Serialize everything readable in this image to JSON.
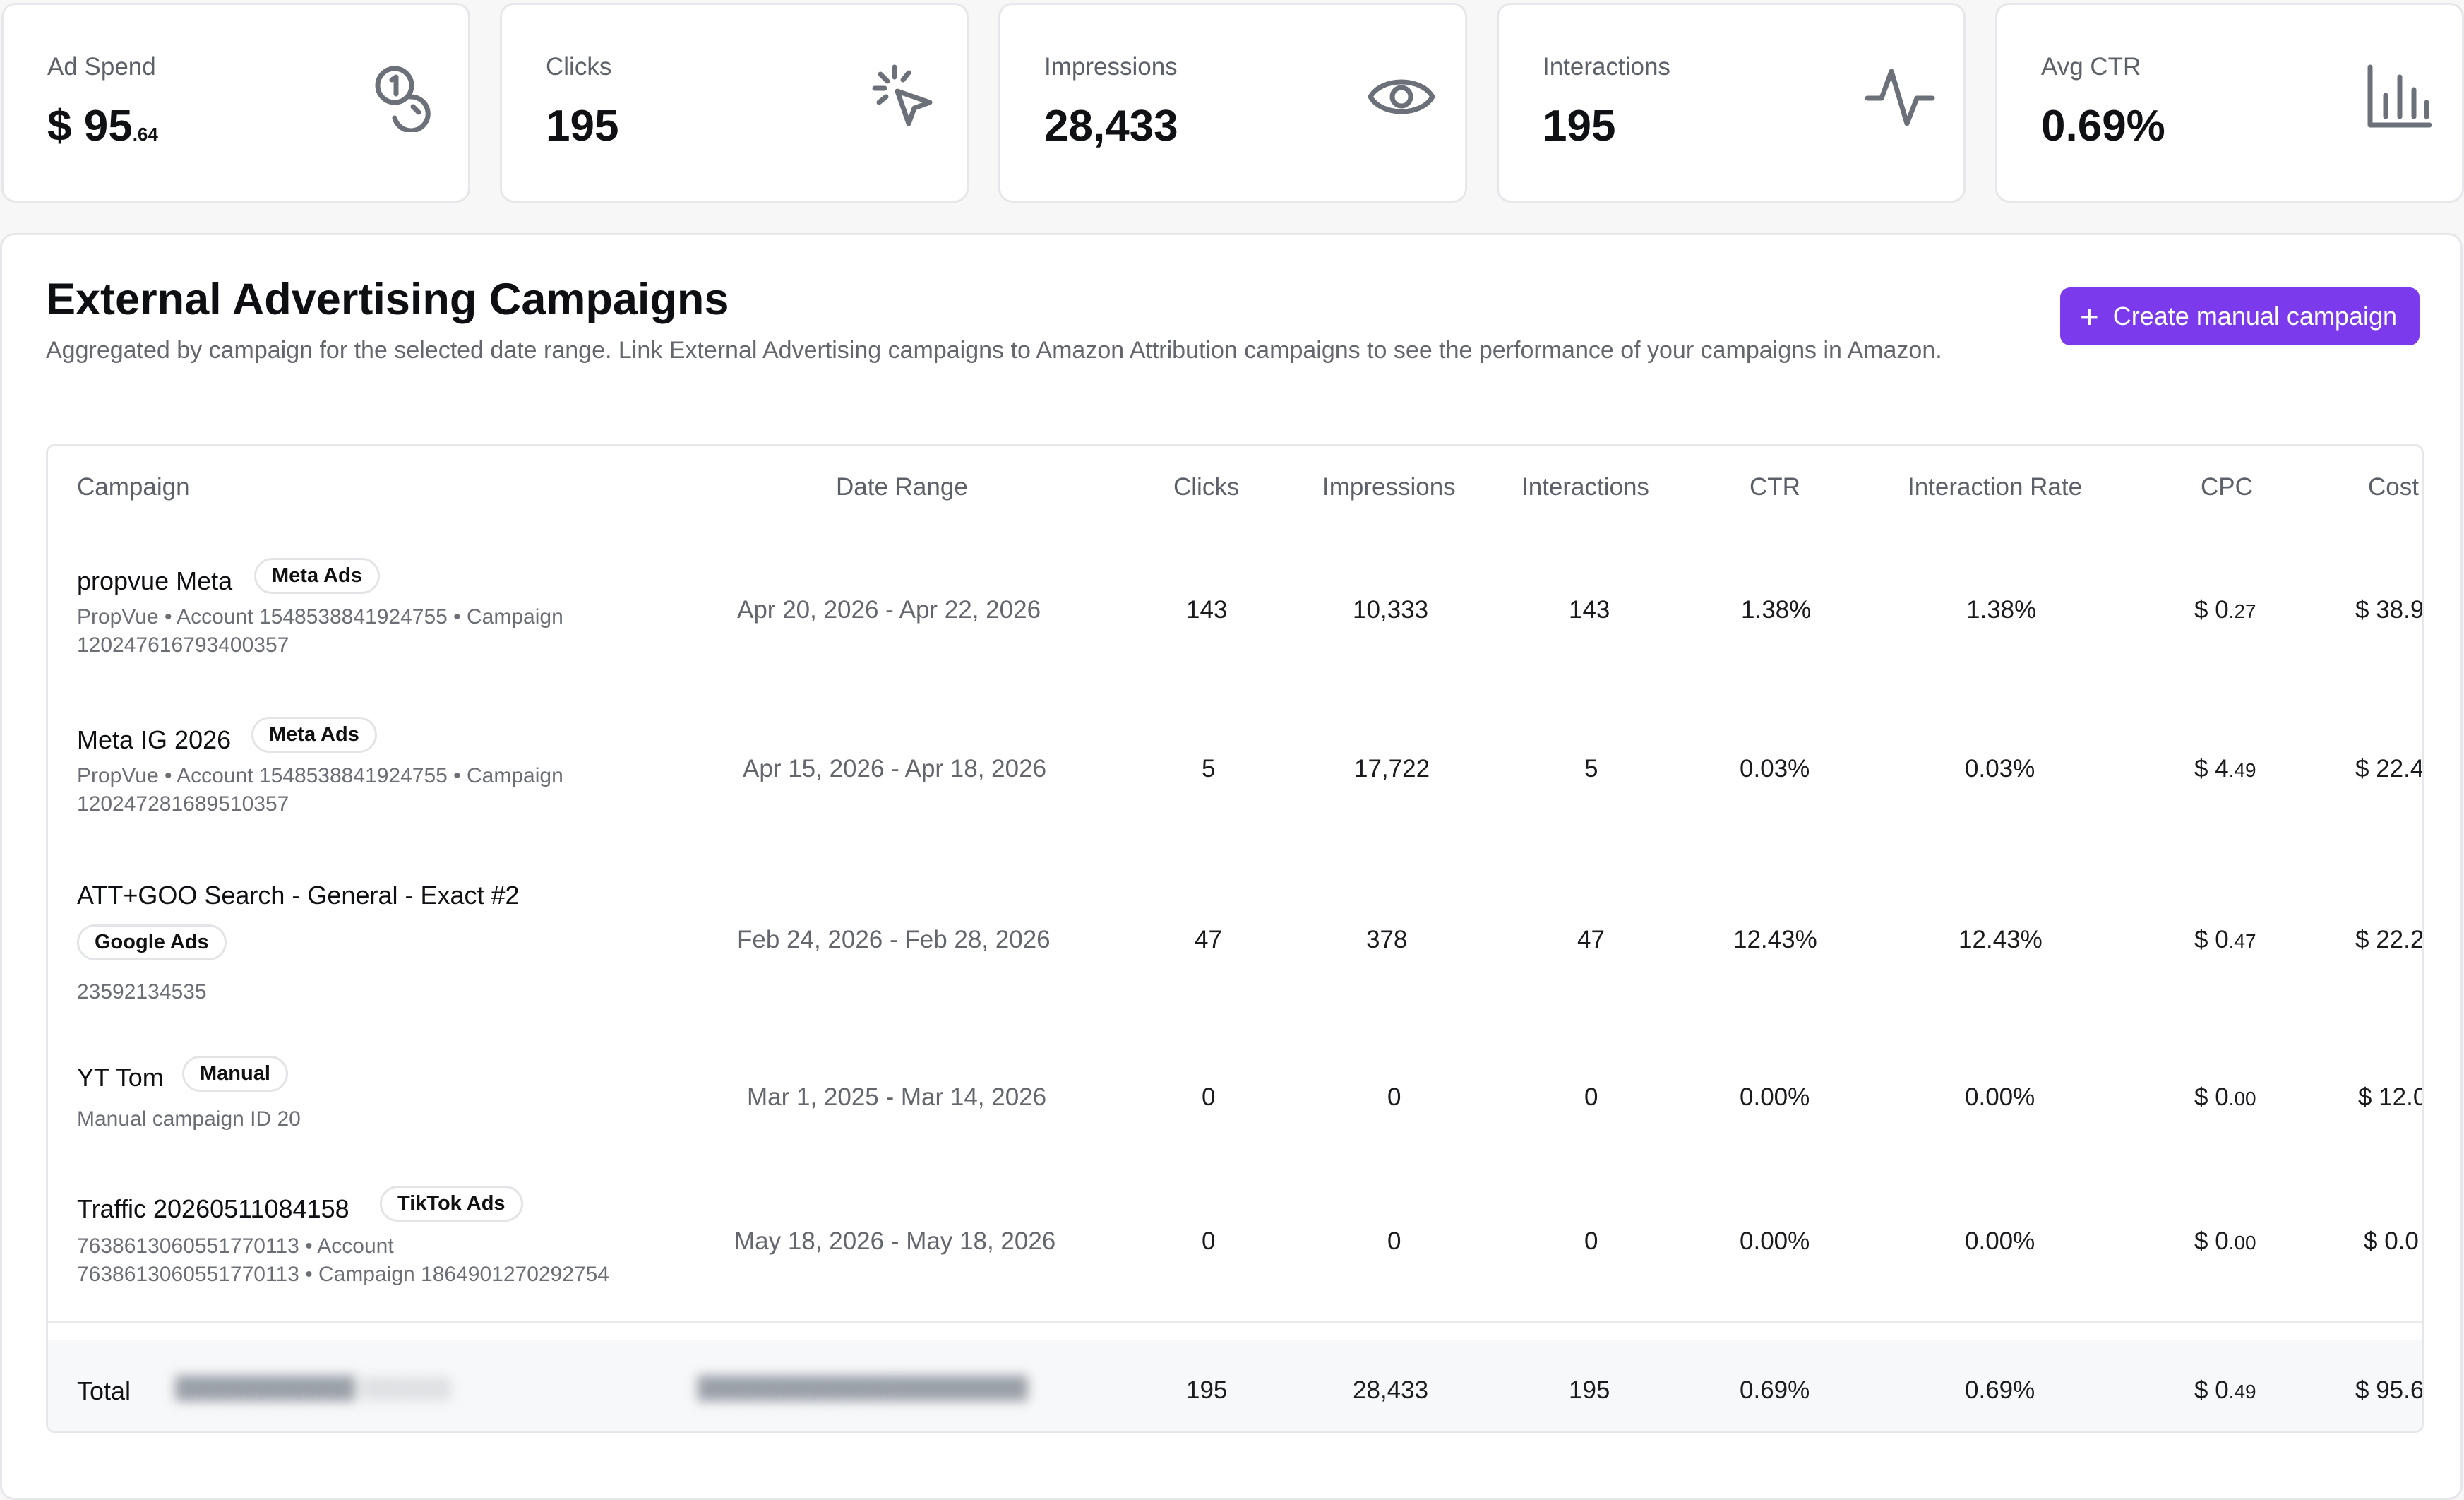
{
  "kpis": [
    {
      "label": "Ad Spend",
      "currency": "$",
      "whole": "95",
      "cents": ".64",
      "icon": "coins-icon"
    },
    {
      "label": "Clicks",
      "value": "195",
      "icon": "pointer-click-icon"
    },
    {
      "label": "Impressions",
      "value": "28,433",
      "icon": "eye-icon"
    },
    {
      "label": "Interactions",
      "value": "195",
      "icon": "activity-icon"
    },
    {
      "label": "Avg CTR",
      "value": "0.69%",
      "icon": "bar-chart-icon"
    }
  ],
  "panel": {
    "title": "External Advertising Campaigns",
    "description": "Aggregated by campaign for the selected date range. Link External Advertising campaigns to Amazon Attribution campaigns to see the performance of your campaigns in Amazon.",
    "create_button": "Create manual campaign"
  },
  "table": {
    "headers": {
      "campaign": "Campaign",
      "date_range": "Date Range",
      "clicks": "Clicks",
      "impressions": "Impressions",
      "interactions": "Interactions",
      "ctr": "CTR",
      "interaction_rate": "Interaction Rate",
      "cpc": "CPC",
      "cost": "Cost"
    },
    "rows": [
      {
        "name": "propvue Meta",
        "badge": "Meta Ads",
        "meta_line1": "PropVue • Account 1548538841924755 • Campaign",
        "meta_line2": "120247616793400357",
        "date_range": "Apr 20, 2026 - Apr 22, 2026",
        "clicks": "143",
        "impressions": "10,333",
        "interactions": "143",
        "ctr": "1.38%",
        "interaction_rate": "1.38%",
        "cpc_whole": "0",
        "cpc_cents": ".27",
        "cost": "38.9"
      },
      {
        "name": "Meta IG 2026",
        "badge": "Meta Ads",
        "meta_line1": "PropVue • Account 1548538841924755 • Campaign",
        "meta_line2": "120247281689510357",
        "date_range": "Apr 15, 2026 - Apr 18, 2026",
        "clicks": "5",
        "impressions": "17,722",
        "interactions": "5",
        "ctr": "0.03%",
        "interaction_rate": "0.03%",
        "cpc_whole": "4",
        "cpc_cents": ".49",
        "cost": "22.4"
      },
      {
        "name": "ATT+GOO Search - General - Exact #2",
        "badge": "Google Ads",
        "meta_line1": "23592134535",
        "meta_line2": "",
        "date_range": "Feb 24, 2026 - Feb 28, 2026",
        "clicks": "47",
        "impressions": "378",
        "interactions": "47",
        "ctr": "12.43%",
        "interaction_rate": "12.43%",
        "cpc_whole": "0",
        "cpc_cents": ".47",
        "cost": "22.2"
      },
      {
        "name": "YT Tom",
        "badge": "Manual",
        "meta_line1": "Manual campaign ID 20",
        "meta_line2": "",
        "date_range": "Mar 1, 2025 - Mar 14, 2026",
        "clicks": "0",
        "impressions": "0",
        "interactions": "0",
        "ctr": "0.00%",
        "interaction_rate": "0.00%",
        "cpc_whole": "0",
        "cpc_cents": ".00",
        "cost": "12.0"
      },
      {
        "name": "Traffic 20260511084158",
        "badge": "TikTok Ads",
        "meta_line1": "7638613060551770113 • Account",
        "meta_line2": "7638613060551770113 • Campaign 1864901270292754",
        "date_range": "May 18, 2026 - May 18, 2026",
        "clicks": "0",
        "impressions": "0",
        "interactions": "0",
        "ctr": "0.00%",
        "interaction_rate": "0.00%",
        "cpc_whole": "0",
        "cpc_cents": ".00",
        "cost": "0.0"
      }
    ],
    "total": {
      "label": "Total",
      "clicks": "195",
      "impressions": "28,433",
      "interactions": "195",
      "ctr": "0.69%",
      "interaction_rate": "0.69%",
      "cpc_whole": "0",
      "cpc_cents": ".49",
      "cost": "95.6"
    },
    "currency": "$"
  },
  "colors": {
    "accent": "#7c3aed",
    "border": "#e6e7ea",
    "muted_text": "#63666d",
    "icon": "#6b7079"
  }
}
